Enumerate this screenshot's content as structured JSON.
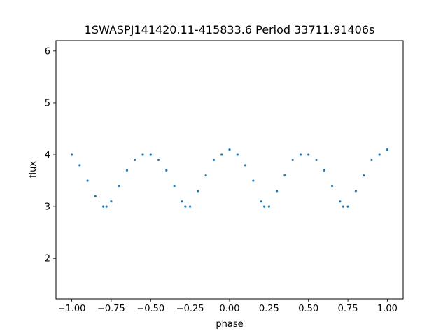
{
  "chart_data": {
    "type": "scatter",
    "title": "1SWASPJ141420.11-415833.6 Period 33711.91406s",
    "xlabel": "phase",
    "ylabel": "flux",
    "xlim": [
      -1.1,
      1.1
    ],
    "ylim": [
      1.22,
      6.2
    ],
    "x_ticks": [
      -1.0,
      -0.75,
      -0.5,
      -0.25,
      0.0,
      0.25,
      0.5,
      0.75,
      1.0
    ],
    "x_tick_labels": [
      "−1.00",
      "−0.75",
      "−0.50",
      "−0.25",
      "0.00",
      "0.25",
      "0.50",
      "0.75",
      "1.00"
    ],
    "y_ticks": [
      2,
      3,
      4,
      5,
      6
    ],
    "y_tick_labels": [
      "2",
      "3",
      "4",
      "5",
      "6"
    ],
    "grid": false,
    "legend": "none",
    "series": [
      {
        "marker_color": "#1f77b4",
        "x": [
          -1.0,
          -0.95,
          -0.9,
          -0.85,
          -0.8,
          -0.78,
          -0.75,
          -0.7,
          -0.65,
          -0.6,
          -0.55,
          -0.5,
          -0.45,
          -0.4,
          -0.35,
          -0.3,
          -0.28,
          -0.25,
          -0.2,
          -0.15,
          -0.1,
          -0.05,
          0.0,
          0.05,
          0.1,
          0.15,
          0.2,
          0.22,
          0.25,
          0.3,
          0.35,
          0.4,
          0.45,
          0.5,
          0.55,
          0.6,
          0.65,
          0.7,
          0.72,
          0.75,
          0.8,
          0.85,
          0.9,
          0.95,
          1.0
        ],
        "y": [
          4.0,
          3.8,
          3.5,
          3.2,
          3.0,
          3.0,
          3.1,
          3.4,
          3.7,
          3.9,
          4.0,
          4.0,
          3.9,
          3.7,
          3.4,
          3.1,
          3.0,
          3.0,
          3.3,
          3.6,
          3.9,
          4.0,
          4.1,
          4.0,
          3.8,
          3.5,
          3.1,
          3.0,
          3.0,
          3.3,
          3.6,
          3.9,
          4.0,
          4.0,
          3.9,
          3.7,
          3.4,
          3.1,
          3.0,
          3.0,
          3.3,
          3.6,
          3.9,
          4.0,
          4.1
        ]
      }
    ]
  }
}
